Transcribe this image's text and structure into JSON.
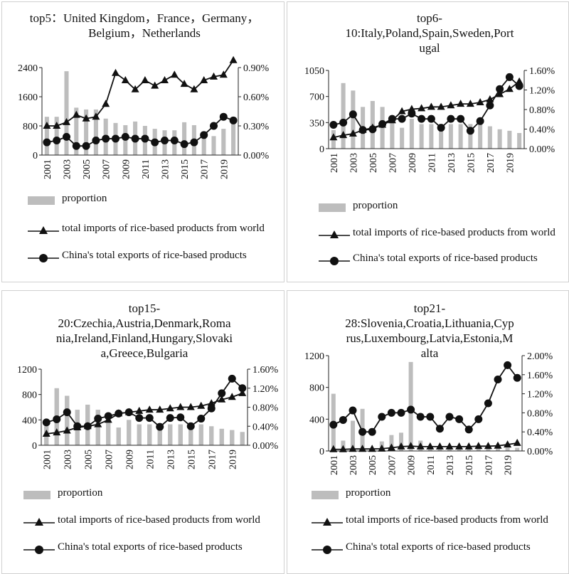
{
  "legend": {
    "proportion": "proportion",
    "imports": "total imports of rice-based products from world",
    "exports": "China's total exports of rice-based products"
  },
  "colors": {
    "bar": "#bdbdbd",
    "line": "#111111"
  },
  "chart_data": [
    {
      "type": "bar+line",
      "title": "top5：United Kingdom，France，Germany，Belgium，Netherlands",
      "years": [
        "2001",
        "2002",
        "2003",
        "2004",
        "2005",
        "2006",
        "2007",
        "2008",
        "2009",
        "2010",
        "2011",
        "2012",
        "2013",
        "2014",
        "2015",
        "2016",
        "2017",
        "2018",
        "2019",
        "2020"
      ],
      "x_tick_labels": [
        "2001",
        "2003",
        "2005",
        "2007",
        "2009",
        "2011",
        "2013",
        "2015",
        "2017",
        "2019"
      ],
      "left_axis": {
        "min": 0,
        "max": 2400,
        "ticks": [
          0,
          800,
          1600,
          2400
        ],
        "tick_labels": [
          "0",
          "800",
          "1600",
          "2400"
        ]
      },
      "right_axis": {
        "min": 0,
        "max": 0.9,
        "ticks": [
          0,
          0.3,
          0.6,
          0.9
        ],
        "tick_labels": [
          "0.00%",
          "0.30%",
          "0.60%",
          "0.90%"
        ]
      },
      "series": [
        {
          "name": "proportion",
          "kind": "bar",
          "axis": "left",
          "values": [
            1050,
            1050,
            2300,
            1300,
            1250,
            1250,
            1000,
            880,
            820,
            920,
            800,
            720,
            680,
            680,
            900,
            820,
            650,
            520,
            720,
            900
          ]
        },
        {
          "name": "total imports of rice-based products from world",
          "kind": "line",
          "marker": "triangle",
          "axis": "left",
          "values": [
            800,
            800,
            900,
            1100,
            1000,
            1050,
            1400,
            2250,
            2050,
            1800,
            2050,
            1900,
            2050,
            2200,
            1950,
            1800,
            2050,
            2150,
            2200,
            2600
          ]
        },
        {
          "name": "China's total exports of rice-based products",
          "kind": "line",
          "marker": "circle",
          "axis": "left",
          "values": [
            350,
            400,
            500,
            250,
            250,
            400,
            450,
            450,
            500,
            450,
            450,
            350,
            400,
            400,
            300,
            350,
            550,
            800,
            1050,
            950
          ]
        }
      ]
    },
    {
      "type": "bar+line",
      "title": "top6-10:Italy,Poland,Spain,Sweden,Portugal",
      "title_lines": [
        "top6-",
        "10:Italy,Poland,Spain,Sweden,Port",
        "ugal"
      ],
      "years": [
        "2001",
        "2002",
        "2003",
        "2004",
        "2005",
        "2006",
        "2007",
        "2008",
        "2009",
        "2010",
        "2011",
        "2012",
        "2013",
        "2014",
        "2015",
        "2016",
        "2017",
        "2018",
        "2019",
        "2020"
      ],
      "x_tick_labels": [
        "2001",
        "2003",
        "2005",
        "2007",
        "2009",
        "2011",
        "2013",
        "2015",
        "2017",
        "2019"
      ],
      "left_axis": {
        "min": 0,
        "max": 1050,
        "ticks": [
          0,
          350,
          700,
          1050
        ],
        "tick_labels": [
          "0",
          "350",
          "700",
          "1050"
        ]
      },
      "right_axis": {
        "min": 0,
        "max": 1.6,
        "ticks": [
          0,
          0.4,
          0.8,
          1.2,
          1.6
        ],
        "tick_labels": [
          "0.00%",
          "0.40%",
          "0.80%",
          "1.20%",
          "1.60%"
        ]
      },
      "series": [
        {
          "name": "proportion",
          "kind": "bar",
          "axis": "left",
          "values": [
            250,
            880,
            780,
            560,
            640,
            560,
            380,
            280,
            400,
            330,
            330,
            330,
            330,
            330,
            330,
            330,
            300,
            260,
            240,
            210
          ]
        },
        {
          "name": "total imports of rice-based products from world",
          "kind": "line",
          "marker": "triangle",
          "axis": "left",
          "values": [
            150,
            180,
            200,
            250,
            280,
            320,
            380,
            500,
            530,
            540,
            560,
            560,
            580,
            600,
            600,
            620,
            660,
            730,
            800,
            900
          ]
        },
        {
          "name": "China's total exports of rice-based products",
          "kind": "line",
          "marker": "circle",
          "axis": "left",
          "values": [
            320,
            350,
            460,
            250,
            260,
            330,
            400,
            400,
            470,
            400,
            400,
            280,
            400,
            400,
            240,
            370,
            580,
            800,
            960,
            840
          ]
        }
      ]
    },
    {
      "type": "bar+line",
      "title": "top15-20:Czechia,Austria,Denmark,Romania,Ireland,Finland,Hungary,Slovakia,Greece,Bulgaria",
      "title_lines": [
        "top15-",
        "20:Czechia,Austria,Denmark,Roma",
        "nia,Ireland,Finland,Hungary,Slovaki",
        "a,Greece,Bulgaria"
      ],
      "years": [
        "2001",
        "2002",
        "2003",
        "2004",
        "2005",
        "2006",
        "2007",
        "2008",
        "2009",
        "2010",
        "2011",
        "2012",
        "2013",
        "2014",
        "2015",
        "2016",
        "2017",
        "2018",
        "2019",
        "2020"
      ],
      "x_tick_labels": [
        "2001",
        "2003",
        "2005",
        "2007",
        "2009",
        "2011",
        "2013",
        "2015",
        "2017",
        "2019"
      ],
      "left_axis": {
        "min": 0,
        "max": 1200,
        "ticks": [
          0,
          400,
          800,
          1200
        ],
        "tick_labels": [
          "0",
          "400",
          "800",
          "1200"
        ]
      },
      "right_axis": {
        "min": 0,
        "max": 1.6,
        "ticks": [
          0,
          0.4,
          0.8,
          1.2,
          1.6
        ],
        "tick_labels": [
          "0.00%",
          "0.40%",
          "0.80%",
          "1.20%",
          "1.60%"
        ]
      },
      "series": [
        {
          "name": "proportion",
          "kind": "bar",
          "axis": "left",
          "values": [
            300,
            900,
            780,
            560,
            640,
            560,
            380,
            280,
            400,
            330,
            330,
            330,
            330,
            330,
            330,
            330,
            300,
            260,
            240,
            210
          ]
        },
        {
          "name": "total imports of rice-based products from world",
          "kind": "line",
          "marker": "triangle",
          "axis": "left",
          "values": [
            180,
            200,
            230,
            280,
            300,
            330,
            400,
            500,
            520,
            540,
            560,
            560,
            580,
            600,
            600,
            620,
            660,
            720,
            760,
            820
          ]
        },
        {
          "name": "China's total exports of rice-based products",
          "kind": "line",
          "marker": "circle",
          "axis": "left",
          "values": [
            360,
            410,
            520,
            300,
            300,
            420,
            460,
            500,
            520,
            430,
            430,
            290,
            430,
            440,
            300,
            420,
            580,
            820,
            1050,
            900
          ]
        }
      ]
    },
    {
      "type": "bar+line",
      "title": "top21-28:Slovenia,Croatia,Lithuania,Cyprus,Luxembourg,Latvia,Estonia,Malta",
      "title_lines": [
        "top21-",
        "28:Slovenia,Croatia,Lithuania,Cyp",
        "rus,Luxembourg,Latvia,Estonia,M",
        "alta"
      ],
      "years": [
        "2001",
        "2002",
        "2003",
        "2004",
        "2005",
        "2006",
        "2007",
        "2008",
        "2009",
        "2010",
        "2011",
        "2012",
        "2013",
        "2014",
        "2015",
        "2016",
        "2017",
        "2018",
        "2019",
        "2020"
      ],
      "x_tick_labels": [
        "2001",
        "2003",
        "2005",
        "2007",
        "2009",
        "2011",
        "2013",
        "2015",
        "2017",
        "2019"
      ],
      "left_axis": {
        "min": 0,
        "max": 1200,
        "ticks": [
          0,
          400,
          800,
          1200
        ],
        "tick_labels": [
          "0",
          "400",
          "800",
          "1200"
        ]
      },
      "right_axis": {
        "min": 0,
        "max": 2.0,
        "ticks": [
          0,
          0.4,
          0.8,
          1.2,
          1.6,
          2.0
        ],
        "tick_labels": [
          "0.00%",
          "0.40%",
          "0.80%",
          "1.20%",
          "1.60%",
          "2.00%"
        ]
      },
      "series": [
        {
          "name": "proportion",
          "kind": "bar",
          "axis": "left",
          "values": [
            720,
            130,
            380,
            530,
            30,
            120,
            200,
            230,
            1120,
            130,
            40,
            40,
            40,
            40,
            40,
            40,
            40,
            40,
            40,
            40
          ]
        },
        {
          "name": "total imports of rice-based products from world",
          "kind": "line",
          "marker": "triangle",
          "axis": "left",
          "values": [
            20,
            20,
            25,
            25,
            25,
            28,
            40,
            55,
            60,
            55,
            55,
            55,
            55,
            55,
            55,
            60,
            60,
            65,
            80,
            100
          ]
        },
        {
          "name": "China's total exports of rice-based products",
          "kind": "line",
          "marker": "circle",
          "axis": "left",
          "values": [
            330,
            390,
            510,
            240,
            240,
            430,
            480,
            480,
            520,
            430,
            430,
            280,
            430,
            400,
            270,
            400,
            600,
            900,
            1080,
            920
          ]
        }
      ]
    }
  ]
}
